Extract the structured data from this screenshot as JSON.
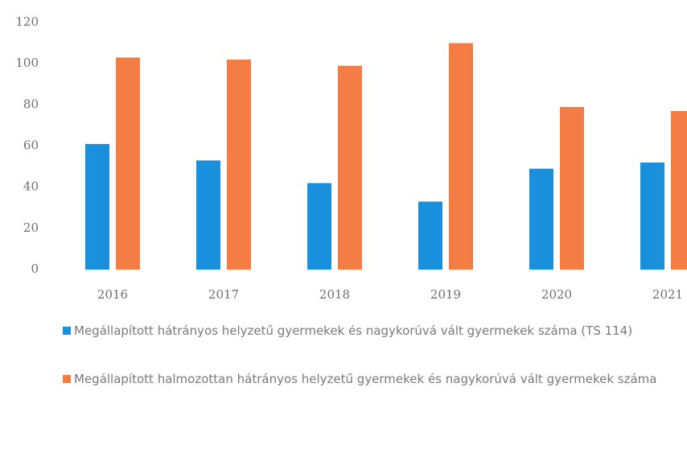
{
  "chart_data": {
    "type": "bar",
    "categories": [
      "2016",
      "2017",
      "2018",
      "2019",
      "2020",
      "2021"
    ],
    "series": [
      {
        "name": "Megállapított hátrányos helyzetű gyermekek és nagykorúvá vált gyermekek száma (TS 114)",
        "color": "#1a8fdc",
        "values": [
          61,
          53,
          42,
          33,
          49,
          52
        ]
      },
      {
        "name": "Megállapított halmozottan hátrányos helyzetű gyermekek és nagykorúvá vált gyermekek száma",
        "color": "#f47c45",
        "values": [
          103,
          102,
          99,
          110,
          79,
          77
        ]
      }
    ],
    "ylim": [
      0,
      120
    ],
    "yticks": [
      0,
      20,
      40,
      60,
      80,
      100,
      120
    ],
    "grid": false,
    "legend": "bottom"
  }
}
